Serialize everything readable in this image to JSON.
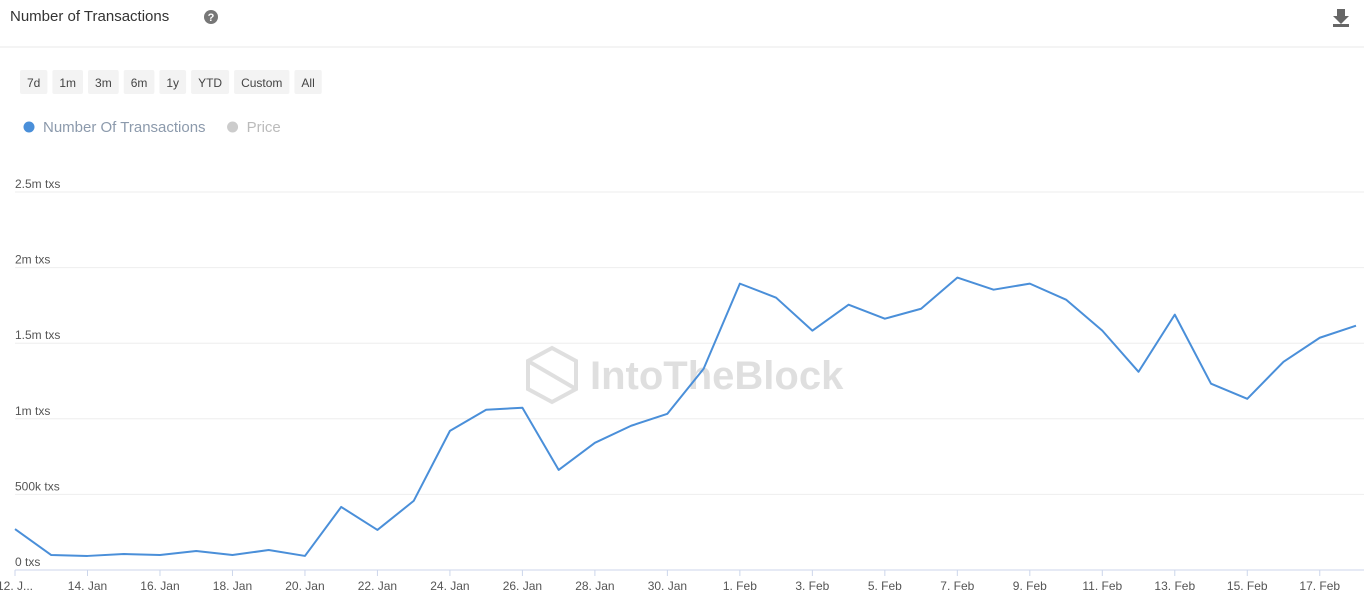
{
  "header": {
    "title": "Number of Transactions"
  },
  "range_buttons": [
    "7d",
    "1m",
    "3m",
    "6m",
    "1y",
    "YTD",
    "Custom",
    "All"
  ],
  "watermark": "IntoTheBlock",
  "chart_data": {
    "type": "line",
    "categories": [
      "12. J...",
      null,
      "14. Jan",
      null,
      "16. Jan",
      null,
      "18. Jan",
      null,
      "20. Jan",
      null,
      "22. Jan",
      null,
      "24. Jan",
      null,
      "26. Jan",
      null,
      "28. Jan",
      null,
      "30. Jan",
      null,
      "1. Feb",
      null,
      "3. Feb",
      null,
      "5. Feb",
      null,
      "7. Feb",
      null,
      "9. Feb",
      null,
      "11. Feb",
      null,
      "13. Feb",
      null,
      "15. Feb",
      null,
      "17. Feb",
      null
    ],
    "series": [
      {
        "name": "Number Of Transactions",
        "color": "#4a8fd9",
        "values": [
          271000,
          99000,
          93000,
          106000,
          99000,
          126000,
          99000,
          132000,
          93000,
          417000,
          265000,
          457000,
          920000,
          1060000,
          1073000,
          662000,
          841000,
          954000,
          1033000,
          1331000,
          1894000,
          1801000,
          1583000,
          1755000,
          1662000,
          1728000,
          1934000,
          1854000,
          1894000,
          1788000,
          1583000,
          1311000,
          1689000,
          1232000,
          1132000,
          1377000,
          1536000,
          1616000
        ]
      }
    ],
    "hidden_series": [
      {
        "name": "Price",
        "color": "#cccccc"
      }
    ],
    "ylim": [
      0,
      2500000
    ],
    "yticks": [
      {
        "value": 0,
        "label": "0 txs"
      },
      {
        "value": 500000,
        "label": "500k txs"
      },
      {
        "value": 1000000,
        "label": "1m txs"
      },
      {
        "value": 1500000,
        "label": "1.5m txs"
      },
      {
        "value": 2000000,
        "label": "2m txs"
      },
      {
        "value": 2500000,
        "label": "2.5m txs"
      }
    ],
    "grid": true
  }
}
